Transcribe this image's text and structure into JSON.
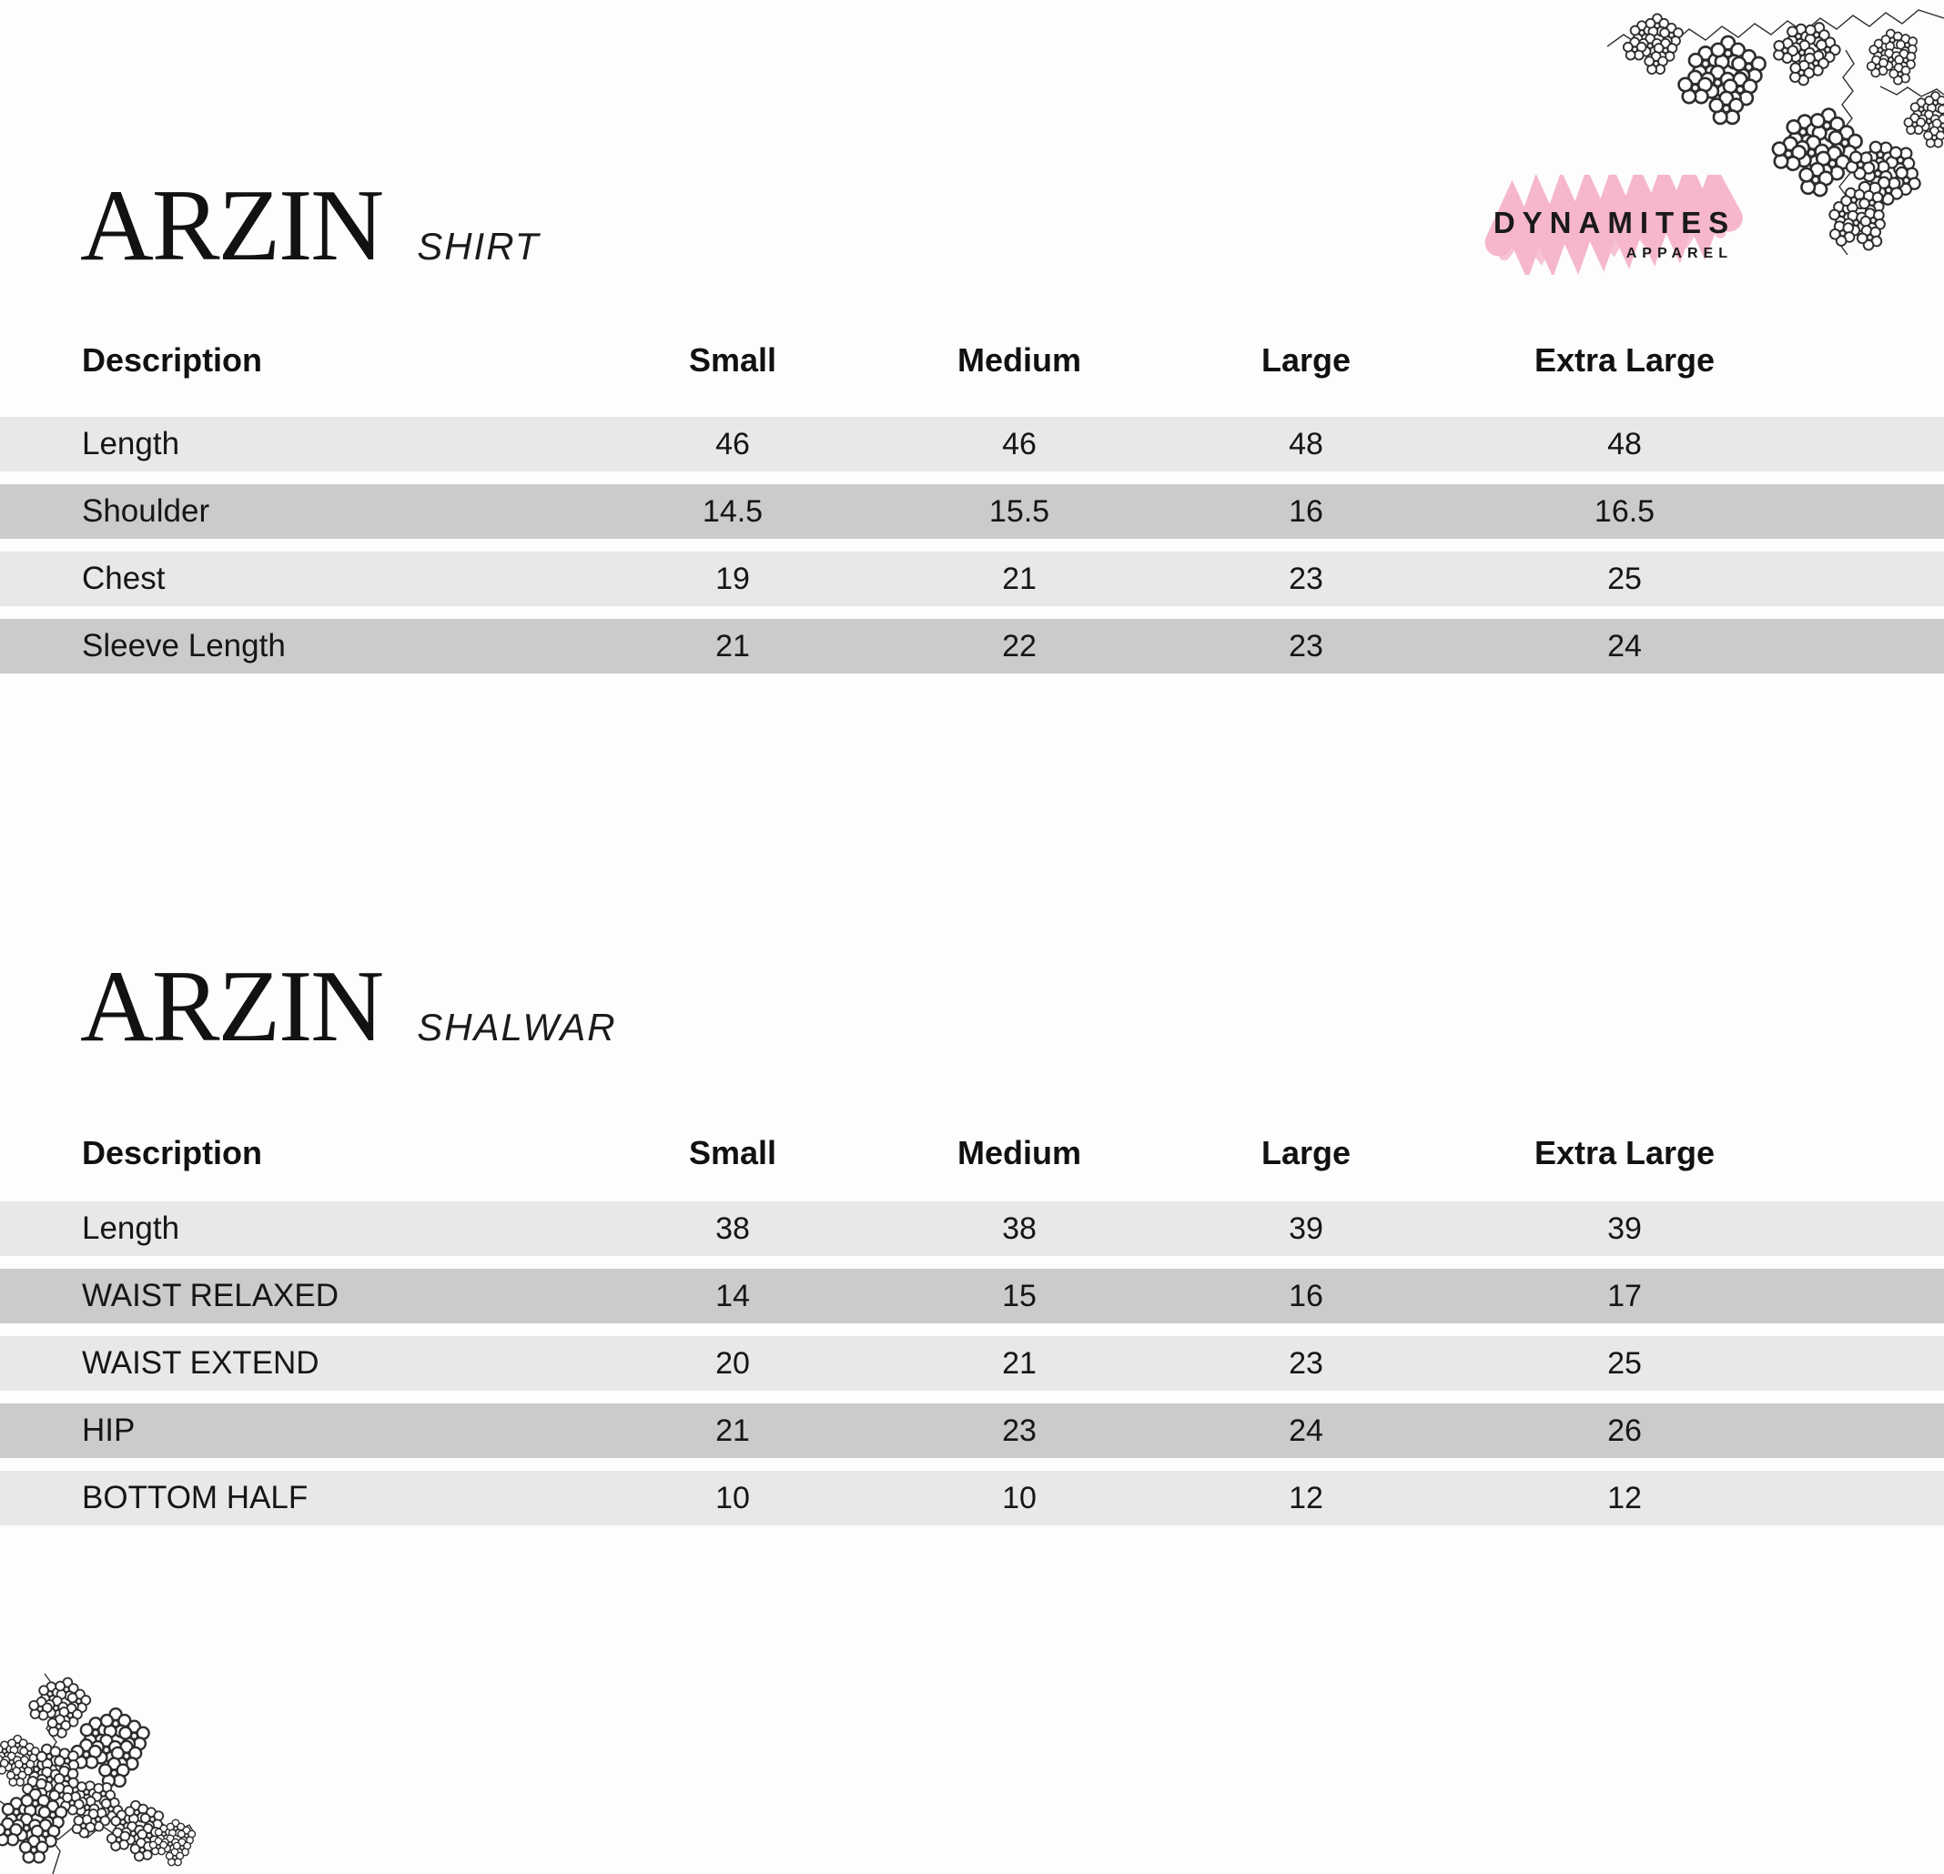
{
  "page": {
    "background": "#fdfdfd"
  },
  "colors": {
    "row_light": "#e9e8e8",
    "row_dark": "#cccbcb",
    "text": "#161616",
    "logo_accent": "#f6b7ca"
  },
  "logo": {
    "name": "DYNAMITES",
    "sub": "APPAREL"
  },
  "sections": [
    {
      "title": "ARZIN",
      "subtitle": "SHIRT",
      "table": {
        "headers": [
          "Description",
          "Small",
          "Medium",
          "Large",
          "Extra Large"
        ],
        "rows": [
          {
            "label": "Length",
            "values": [
              "46",
              "46",
              "48",
              "48"
            ]
          },
          {
            "label": "Shoulder",
            "values": [
              "14.5",
              "15.5",
              "16",
              "16.5"
            ]
          },
          {
            "label": "Chest",
            "values": [
              "19",
              "21",
              "23",
              "25"
            ]
          },
          {
            "label": "Sleeve Length",
            "values": [
              "21",
              "22",
              "23",
              "24"
            ]
          }
        ]
      }
    },
    {
      "title": "ARZIN",
      "subtitle": "SHALWAR",
      "table": {
        "headers": [
          "Description",
          "Small",
          "Medium",
          "Large",
          "Extra Large"
        ],
        "rows": [
          {
            "label": "Length",
            "values": [
              "38",
              "38",
              "39",
              "39"
            ]
          },
          {
            "label": "WAIST RELAXED",
            "values": [
              "14",
              "15",
              "16",
              "17"
            ]
          },
          {
            "label": "WAIST EXTEND",
            "values": [
              "20",
              "21",
              "23",
              "25"
            ]
          },
          {
            "label": "HIP",
            "values": [
              "21",
              "23",
              "24",
              "26"
            ]
          },
          {
            "label": "BOTTOM HALF",
            "values": [
              "10",
              "10",
              "12",
              "12"
            ]
          }
        ]
      }
    }
  ]
}
